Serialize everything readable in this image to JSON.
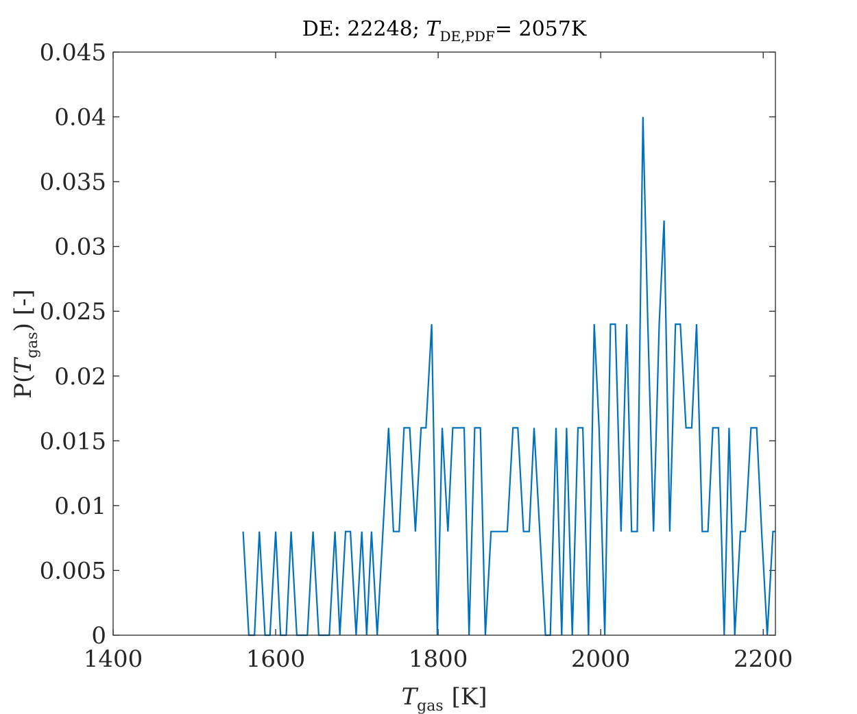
{
  "chart_data": {
    "type": "line",
    "title": {
      "prefix": "DE: 22248; ",
      "var": "T",
      "sub": "DE,PDF",
      "suffix": "= 2057K"
    },
    "xlabel": {
      "var": "T",
      "sub": "gas",
      "suffix": "[K]"
    },
    "ylabel": {
      "pre": "P(",
      "var": "T",
      "sub": "gas",
      "post": ") [-]"
    },
    "xlim": [
      1400,
      2215
    ],
    "ylim": [
      0,
      0.045
    ],
    "xticks": [
      1400,
      1600,
      1800,
      2000,
      2200
    ],
    "xtick_labels": [
      "1400",
      "1600",
      "1800",
      "2000",
      "2200"
    ],
    "yticks": [
      0,
      0.005,
      0.01,
      0.015,
      0.02,
      0.025,
      0.03,
      0.035,
      0.04,
      0.045
    ],
    "ytick_labels": [
      "0",
      "0.005",
      "0.01",
      "0.015",
      "0.02",
      "0.025",
      "0.03",
      "0.035",
      "0.04",
      "0.045"
    ],
    "grid": false,
    "series": [
      {
        "color": "#0072BD",
        "x": [
          1560,
          1567,
          1574,
          1580,
          1587,
          1593,
          1600,
          1606,
          1613,
          1619,
          1626,
          1633,
          1639,
          1646,
          1653,
          1659,
          1666,
          1673,
          1679,
          1686,
          1692,
          1699,
          1706,
          1712,
          1718,
          1725,
          1732,
          1739,
          1745,
          1752,
          1758,
          1765,
          1772,
          1779,
          1785,
          1792,
          1799,
          1805,
          1812,
          1818,
          1825,
          1832,
          1838,
          1845,
          1852,
          1858,
          1865,
          1872,
          1878,
          1885,
          1892,
          1898,
          1905,
          1912,
          1918,
          1925,
          1932,
          1938,
          1945,
          1952,
          1958,
          1965,
          1972,
          1978,
          1985,
          1992,
          1998,
          2005,
          2012,
          2018,
          2025,
          2032,
          2038,
          2045,
          2052,
          2058,
          2065,
          2072,
          2078,
          2085,
          2092,
          2098,
          2105,
          2112,
          2118,
          2125,
          2132,
          2138,
          2145,
          2152,
          2158,
          2165,
          2172,
          2178,
          2185,
          2192,
          2198,
          2205,
          2212,
          2215
        ],
        "y": [
          0.008,
          0,
          0,
          0.008,
          0,
          0,
          0.008,
          0,
          0,
          0.008,
          0,
          0,
          0,
          0.008,
          0,
          0,
          0,
          0.008,
          0,
          0.008,
          0.008,
          0,
          0.008,
          0,
          0.008,
          0,
          0.008,
          0.016,
          0.008,
          0.008,
          0.016,
          0.016,
          0.008,
          0.016,
          0.016,
          0.024,
          0,
          0.016,
          0.008,
          0.016,
          0.016,
          0.016,
          0,
          0.016,
          0.016,
          0,
          0.008,
          0.008,
          0.008,
          0.008,
          0.016,
          0.016,
          0.008,
          0.008,
          0.016,
          0.008,
          0,
          0,
          0.016,
          0,
          0.016,
          0,
          0.016,
          0.016,
          0,
          0.024,
          0.016,
          0,
          0.024,
          0.024,
          0.008,
          0.024,
          0.008,
          0.008,
          0.04,
          0.024,
          0.008,
          0.024,
          0.032,
          0.008,
          0.024,
          0.024,
          0.016,
          0.016,
          0.024,
          0.008,
          0.008,
          0.016,
          0.016,
          0,
          0.016,
          0,
          0.008,
          0.008,
          0.016,
          0.016,
          0.008,
          0,
          0.008,
          0.008
        ]
      }
    ]
  }
}
